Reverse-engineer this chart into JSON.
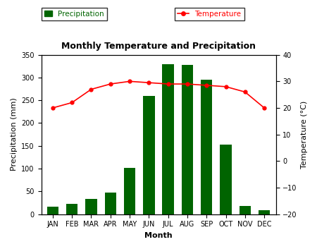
{
  "months": [
    "JAN",
    "FEB",
    "MAR",
    "APR",
    "MAY",
    "JUN",
    "JUL",
    "AUG",
    "SEP",
    "OCT",
    "NOV",
    "DEC"
  ],
  "precipitation": [
    17,
    23,
    34,
    47,
    102,
    260,
    330,
    328,
    295,
    152,
    18,
    8
  ],
  "temperature": [
    20,
    22,
    27,
    29,
    30,
    29.5,
    29,
    29,
    28.5,
    28,
    26,
    20
  ],
  "bar_color": "#006400",
  "line_color": "#ff0000",
  "title": "Monthly Temperature and Precipitation",
  "xlabel": "Month",
  "ylabel_left": "Precipitation (mm)",
  "ylabel_right": "Temperature (°C)",
  "ylim_left": [
    0,
    350
  ],
  "ylim_right": [
    -20,
    40
  ],
  "yticks_left": [
    0,
    50,
    100,
    150,
    200,
    250,
    300,
    350
  ],
  "yticks_right": [
    -20,
    -10,
    0,
    10,
    20,
    30,
    40
  ],
  "legend_precip": "Precipitation",
  "legend_temp": "Temperature",
  "title_fontsize": 9,
  "label_fontsize": 8,
  "tick_fontsize": 7,
  "legend_fontsize": 7.5
}
